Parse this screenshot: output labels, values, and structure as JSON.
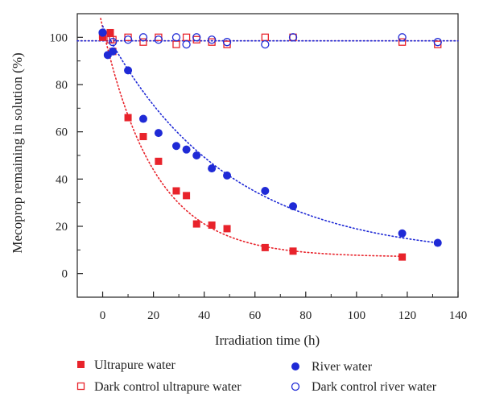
{
  "chart_data": {
    "type": "scatter",
    "xlabel": "Irradiation time (h)",
    "ylabel": "Mecoprop remaining in solution (%)",
    "xlim": [
      -10,
      140
    ],
    "ylim": [
      -10,
      110
    ],
    "xticks": [
      0,
      20,
      40,
      60,
      80,
      100,
      120,
      140
    ],
    "yticks": [
      0,
      20,
      40,
      60,
      80,
      100
    ],
    "grid": false,
    "legend_position": "bottom",
    "series": [
      {
        "name": "Ultrapure water",
        "marker": "filled-square",
        "color": "#e8232b",
        "x": [
          0,
          3,
          4,
          10,
          16,
          22,
          29,
          33,
          37,
          43,
          49,
          64,
          75,
          118
        ],
        "y": [
          100,
          102,
          94,
          66,
          58,
          47.5,
          35,
          33,
          21,
          20.5,
          19,
          11,
          9.5,
          7
        ]
      },
      {
        "name": "Dark control ultrapure water",
        "marker": "open-square",
        "color": "#e8232b",
        "x": [
          0,
          3,
          4,
          10,
          16,
          22,
          29,
          33,
          37,
          43,
          49,
          64,
          75,
          118,
          132
        ],
        "y": [
          101,
          99,
          99,
          100,
          98,
          100,
          97,
          100,
          99,
          98,
          97,
          100,
          100,
          98,
          97
        ]
      },
      {
        "name": "River water",
        "marker": "filled-circle",
        "color": "#1f2ad6",
        "x": [
          0,
          2,
          4,
          10,
          16,
          22,
          29,
          33,
          37,
          43,
          49,
          64,
          75,
          118,
          132
        ],
        "y": [
          102,
          92.5,
          94,
          86,
          65.5,
          59.5,
          54,
          52.5,
          50,
          44.5,
          41.5,
          35,
          28.5,
          17,
          13
        ]
      },
      {
        "name": "Dark control river water",
        "marker": "open-circle",
        "color": "#1f2ad6",
        "x": [
          0,
          4,
          10,
          16,
          22,
          29,
          33,
          37,
          43,
          49,
          64,
          75,
          118,
          132
        ],
        "y": [
          102,
          98,
          99,
          100,
          99,
          100,
          97,
          100,
          99,
          98,
          97,
          100,
          100,
          98
        ]
      }
    ],
    "fits": [
      {
        "series": "Ultrapure water",
        "color": "#e8232b",
        "model": "exp_decay_offset",
        "params": {
          "y0": 7.0,
          "a": 101.0,
          "k": 0.0484,
          "x0": -0.8
        },
        "x_range": [
          -0.8,
          118
        ]
      },
      {
        "series": "River water",
        "color": "#1f2ad6",
        "model": "exp_decay_offset",
        "params": {
          "y0": 6.8,
          "a": 98.0,
          "k": 0.0209,
          "x0": 0
        },
        "x_range": [
          0,
          132
        ]
      },
      {
        "series": "Dark control ultrapure water",
        "color": "#e8232b",
        "model": "constant",
        "params": {
          "y": 98.5
        },
        "x_range": [
          -10,
          140
        ]
      },
      {
        "series": "Dark control river water",
        "color": "#1f2ad6",
        "model": "constant",
        "params": {
          "y": 98.5
        },
        "x_range": [
          -10,
          140
        ]
      }
    ]
  }
}
